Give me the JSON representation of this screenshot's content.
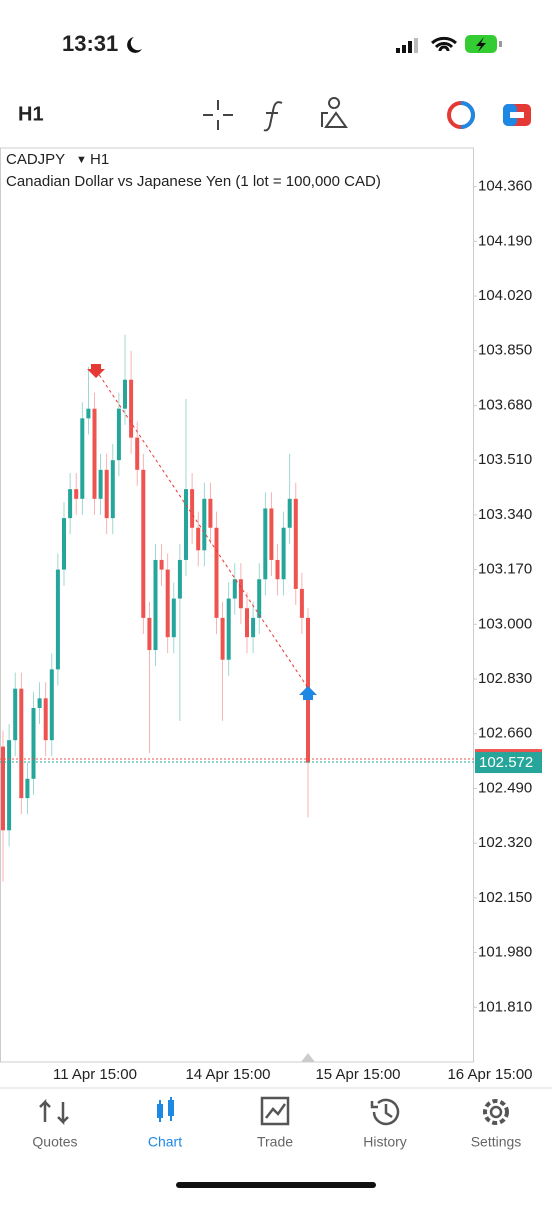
{
  "status_bar": {
    "time": "13:31"
  },
  "toolbar": {
    "timeframe": "H1"
  },
  "chart_data": {
    "type": "candlestick",
    "symbol": "CADJPY",
    "timeframe": "H1",
    "subtitle": "Canadian Dollar vs Japanese Yen (1 lot = 100,000 CAD)",
    "x_labels": [
      "11 Apr 15:00",
      "14 Apr 15:00",
      "15 Apr 15:00",
      "16 Apr 15:00"
    ],
    "open": [
      102.62,
      102.36,
      102.64,
      102.8,
      102.46,
      102.52,
      102.74,
      102.77,
      102.64,
      102.86,
      103.17,
      103.33,
      103.42,
      103.39,
      103.64,
      103.67,
      103.39,
      103.48,
      103.33,
      103.51,
      103.67,
      103.76,
      103.58,
      103.48,
      103.02,
      102.92,
      103.2,
      103.17,
      102.96,
      103.08,
      103.2,
      103.42,
      103.3,
      103.23,
      103.39,
      103.3,
      103.02,
      102.89,
      103.08,
      103.14,
      103.05,
      102.96,
      103.02,
      103.14,
      103.36,
      103.2,
      103.14,
      103.3,
      103.39,
      103.11,
      103.02
    ],
    "high": [
      102.67,
      102.69,
      102.85,
      102.85,
      102.57,
      102.79,
      102.82,
      102.82,
      102.91,
      103.22,
      103.38,
      103.47,
      103.47,
      103.69,
      103.8,
      103.72,
      103.53,
      103.53,
      103.56,
      103.72,
      103.9,
      103.85,
      103.63,
      103.53,
      103.07,
      103.25,
      103.25,
      103.22,
      103.13,
      103.25,
      103.7,
      103.47,
      103.35,
      103.44,
      103.44,
      103.35,
      103.07,
      103.13,
      103.19,
      103.19,
      103.1,
      103.07,
      103.19,
      103.41,
      103.41,
      103.25,
      103.35,
      103.53,
      103.44,
      103.16,
      103.05
    ],
    "low": [
      102.2,
      102.31,
      102.59,
      102.41,
      102.41,
      102.47,
      102.69,
      102.59,
      102.59,
      102.81,
      103.12,
      103.28,
      103.34,
      103.34,
      103.59,
      103.34,
      103.34,
      103.28,
      103.28,
      103.46,
      103.62,
      103.53,
      103.43,
      102.97,
      102.6,
      102.87,
      103.12,
      102.91,
      102.91,
      102.7,
      103.15,
      103.25,
      103.18,
      103.18,
      103.25,
      102.97,
      102.7,
      102.84,
      103.03,
      103.0,
      102.91,
      102.91,
      102.97,
      103.09,
      103.15,
      103.09,
      103.09,
      103.25,
      103.06,
      102.97,
      102.4
    ],
    "close": [
      102.36,
      102.64,
      102.8,
      102.46,
      102.52,
      102.74,
      102.77,
      102.64,
      102.86,
      103.17,
      103.33,
      103.42,
      103.39,
      103.64,
      103.67,
      103.39,
      103.48,
      103.33,
      103.51,
      103.67,
      103.76,
      103.58,
      103.48,
      103.02,
      102.92,
      103.2,
      103.17,
      102.96,
      103.08,
      103.2,
      103.42,
      103.3,
      103.23,
      103.39,
      103.3,
      103.02,
      102.89,
      103.08,
      103.14,
      103.05,
      102.96,
      103.02,
      103.14,
      103.36,
      103.2,
      103.14,
      103.3,
      103.39,
      103.11,
      103.02,
      102.57
    ],
    "up_color": "#26a69a",
    "down_color": "#ef5350",
    "ylim": [
      101.64,
      104.48
    ],
    "yticks": [
      {
        "value": 104.36,
        "label": "104.360"
      },
      {
        "value": 104.19,
        "label": "104.190"
      },
      {
        "value": 104.02,
        "label": "104.020"
      },
      {
        "value": 103.85,
        "label": "103.850"
      },
      {
        "value": 103.68,
        "label": "103.680"
      },
      {
        "value": 103.51,
        "label": "103.510"
      },
      {
        "value": 103.34,
        "label": "103.340"
      },
      {
        "value": 103.17,
        "label": "103.170"
      },
      {
        "value": 103.0,
        "label": "103.000"
      },
      {
        "value": 102.83,
        "label": "102.830"
      },
      {
        "value": 102.66,
        "label": "102.660"
      },
      {
        "value": 102.49,
        "label": "102.490"
      },
      {
        "value": 102.32,
        "label": "102.320"
      },
      {
        "value": 102.15,
        "label": "102.150"
      },
      {
        "value": 101.98,
        "label": "101.980"
      },
      {
        "value": 101.81,
        "label": "101.810"
      }
    ],
    "last_price": 102.572
  },
  "tabs": [
    {
      "label": "Quotes"
    },
    {
      "label": "Chart",
      "active": true
    },
    {
      "label": "Trade"
    },
    {
      "label": "History"
    },
    {
      "label": "Settings"
    }
  ]
}
